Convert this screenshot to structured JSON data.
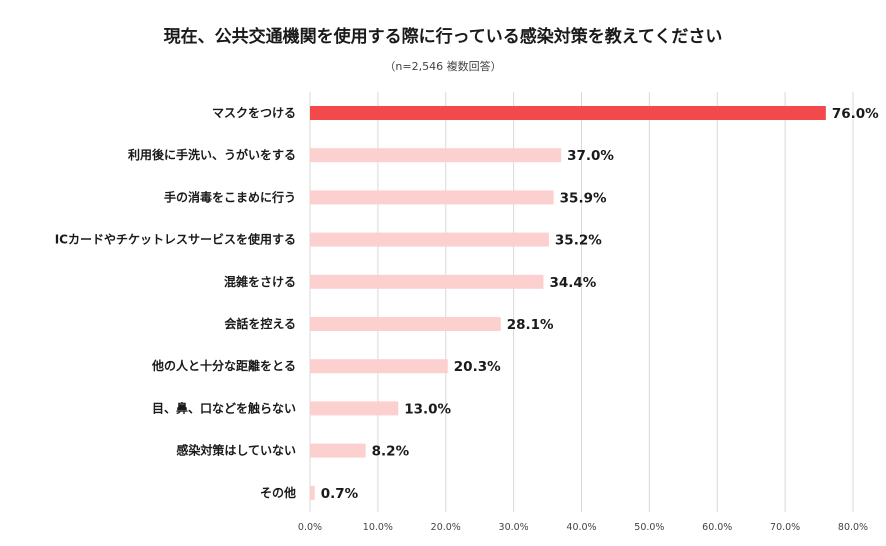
{
  "chart_data": {
    "type": "bar",
    "orientation": "horizontal",
    "title": "現在、公共交通機関を使用する際に行っている感染対策を教えてください",
    "subtitle": "（n=2,546 複数回答）",
    "categories": [
      "マスクをつける",
      "利用後に手洗い、うがいをする",
      "手の消毒をこまめに行う",
      "ICカードやチケットレスサービスを使用する",
      "混雑をさける",
      "会話を控える",
      "他の人と十分な距離をとる",
      "目、鼻、口などを触らない",
      "感染対策はしていない",
      "その他"
    ],
    "values": [
      76.0,
      37.0,
      35.9,
      35.2,
      34.4,
      28.1,
      20.3,
      13.0,
      8.2,
      0.7
    ],
    "value_labels": [
      "76.0%",
      "37.0%",
      "35.9%",
      "35.2%",
      "34.4%",
      "28.1%",
      "20.3%",
      "13.0%",
      "8.2%",
      "0.7%"
    ],
    "xlim": [
      0,
      80
    ],
    "x_ticks": [
      0,
      10,
      20,
      30,
      40,
      50,
      60,
      70,
      80
    ],
    "x_tick_labels": [
      "0.0%",
      "10.0%",
      "20.0%",
      "30.0%",
      "40.0%",
      "50.0%",
      "60.0%",
      "70.0%",
      "80.0%"
    ],
    "grid": true,
    "legend": "none",
    "colors": {
      "highlight": "#f24a4a",
      "bar": "#fdd0d0",
      "grid": "#d9d9d9"
    }
  }
}
